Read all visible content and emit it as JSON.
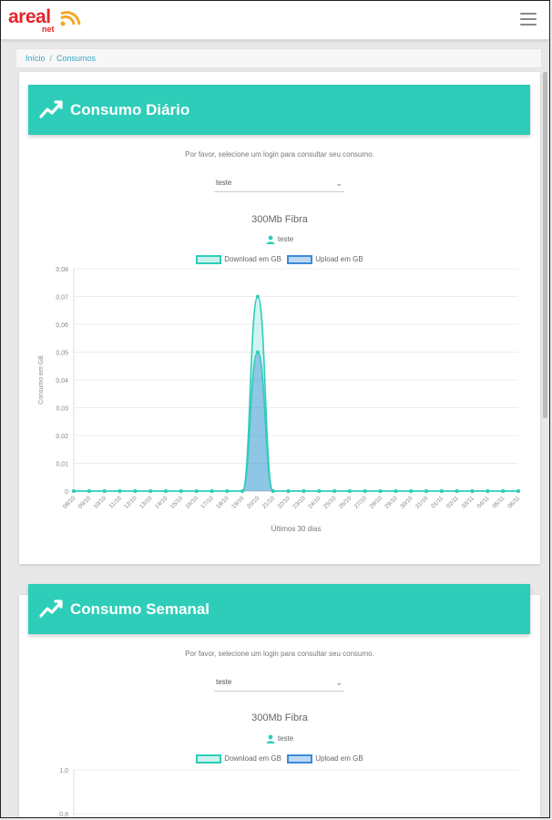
{
  "app": {
    "logo_text": "areal",
    "logo_sub": "net"
  },
  "breadcrumb": {
    "home": "Início",
    "separator": "/",
    "current": "Consumos"
  },
  "colors": {
    "accent": "#2ecdb9",
    "brand": "#e3262d",
    "download": "#2ecdb9",
    "upload": "#3d8bd8"
  },
  "daily": {
    "title": "Consumo Diário",
    "prompt": "Por favor, selecione um login para consultar seu consumo.",
    "select_value": "teste",
    "plan": "300Mb Fibra",
    "user": "teste",
    "legend": {
      "download": "Download em GB",
      "upload": "Upload em GB"
    },
    "ylabel": "Consumo em GB",
    "xlabel": "Últimos 30 dias"
  },
  "weekly": {
    "title": "Consumo Semanal",
    "prompt": "Por favor, selecione um login para consultar seu consumo.",
    "select_value": "teste",
    "plan": "300Mb Fibra",
    "user": "teste",
    "legend": {
      "download": "Download em GB",
      "upload": "Upload em GB"
    }
  },
  "chart_data": [
    {
      "type": "area",
      "title": "300Mb Fibra",
      "xlabel": "Últimos 30 dias",
      "ylabel": "Consumo em GB",
      "ylim": [
        0,
        0.08
      ],
      "yticks": [
        "0",
        "0,01",
        "0,02",
        "0,03",
        "0,04",
        "0,05",
        "0,06",
        "0,07",
        "0,08"
      ],
      "categories": [
        "08/10",
        "09/10",
        "10/10",
        "11/10",
        "12/10",
        "13/10",
        "14/10",
        "15/10",
        "16/10",
        "17/10",
        "18/10",
        "19/10",
        "20/10",
        "21/10",
        "22/10",
        "23/10",
        "24/10",
        "25/10",
        "26/10",
        "27/10",
        "28/10",
        "29/10",
        "30/10",
        "31/10",
        "01/11",
        "02/11",
        "03/11",
        "04/11",
        "05/11",
        "06/11"
      ],
      "series": [
        {
          "name": "Download em GB",
          "values": [
            0,
            0,
            0,
            0,
            0,
            0,
            0,
            0,
            0,
            0,
            0,
            0,
            0.07,
            0,
            0,
            0,
            0,
            0,
            0,
            0,
            0,
            0,
            0,
            0,
            0,
            0,
            0,
            0,
            0,
            0
          ]
        },
        {
          "name": "Upload em GB",
          "values": [
            0,
            0,
            0,
            0,
            0,
            0,
            0,
            0,
            0,
            0,
            0,
            0,
            0.05,
            0,
            0,
            0,
            0,
            0,
            0,
            0,
            0,
            0,
            0,
            0,
            0,
            0,
            0,
            0,
            0,
            0
          ]
        }
      ],
      "grid": true,
      "legend_position": "top"
    },
    {
      "type": "area",
      "title": "300Mb Fibra",
      "ylim": [
        0,
        1.0
      ],
      "yticks_visible": [
        "0,8",
        "1,0"
      ],
      "series": [
        {
          "name": "Download em GB",
          "values": []
        },
        {
          "name": "Upload em GB",
          "values": []
        }
      ],
      "grid": true,
      "legend_position": "top"
    }
  ]
}
